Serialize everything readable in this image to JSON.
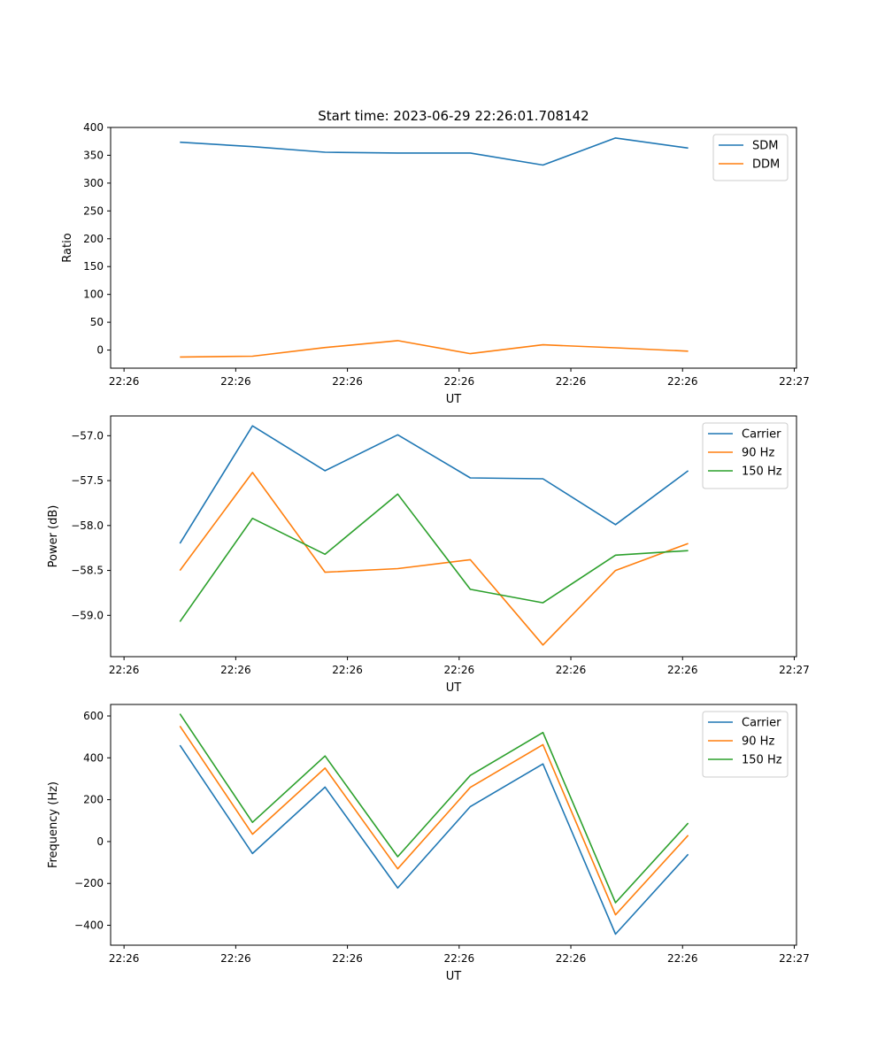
{
  "figure": {
    "title": "Start time: 2023-06-29 22:26:01.708142"
  },
  "chart_data": [
    {
      "type": "line",
      "title": "Start time: 2023-06-29 22:26:01.708142",
      "xlabel": "UT",
      "ylabel": "Ratio",
      "x_tick_labels": [
        "22:26",
        "22:26",
        "22:26",
        "22:26",
        "22:26",
        "22:26",
        "22:27"
      ],
      "x": [
        0.5,
        1.15,
        1.8,
        2.45,
        3.1,
        3.75,
        4.4,
        5.05
      ],
      "xlim": [
        -0.12,
        6.02
      ],
      "ylim": [
        -32.5,
        400
      ],
      "yticks": [
        0,
        50,
        100,
        150,
        200,
        250,
        300,
        350,
        400
      ],
      "grid": false,
      "legend": "top-right",
      "series": [
        {
          "name": "SDM",
          "color": "#1f77b4",
          "values": [
            373.5,
            365.5,
            355.5,
            354,
            354,
            332.5,
            381,
            363
          ]
        },
        {
          "name": "DDM",
          "color": "#ff7f0e",
          "values": [
            -12.5,
            -11,
            4.5,
            17,
            -6.5,
            9.5,
            4,
            -2
          ]
        }
      ]
    },
    {
      "type": "line",
      "xlabel": "UT",
      "ylabel": "Power (dB)",
      "x_tick_labels": [
        "22:26",
        "22:26",
        "22:26",
        "22:26",
        "22:26",
        "22:26",
        "22:27"
      ],
      "x": [
        0.5,
        1.15,
        1.8,
        2.45,
        3.1,
        3.75,
        4.4,
        5.05
      ],
      "xlim": [
        -0.12,
        6.02
      ],
      "ylim": [
        -59.46,
        -56.78
      ],
      "yticks": [
        -59.0,
        -58.5,
        -58.0,
        -57.5,
        -57.0
      ],
      "ytick_labels": [
        "−59.0",
        "−58.5",
        "−58.0",
        "−57.5",
        "−57.0"
      ],
      "grid": false,
      "legend": "top-right",
      "series": [
        {
          "name": "Carrier",
          "color": "#1f77b4",
          "values": [
            -58.2,
            -56.89,
            -57.39,
            -56.99,
            -57.47,
            -57.48,
            -57.99,
            -57.39
          ]
        },
        {
          "name": "90 Hz",
          "color": "#ff7f0e",
          "values": [
            -58.5,
            -57.41,
            -58.52,
            -58.48,
            -58.38,
            -59.33,
            -58.5,
            -58.2
          ]
        },
        {
          "name": "150 Hz",
          "color": "#2ca02c",
          "values": [
            -59.07,
            -57.92,
            -58.32,
            -57.65,
            -58.71,
            -58.86,
            -58.33,
            -58.28
          ]
        }
      ]
    },
    {
      "type": "line",
      "xlabel": "UT",
      "ylabel": "Frequency (Hz)",
      "x_tick_labels": [
        "22:26",
        "22:26",
        "22:26",
        "22:26",
        "22:26",
        "22:26",
        "22:27"
      ],
      "x": [
        0.5,
        1.15,
        1.8,
        2.45,
        3.1,
        3.75,
        4.4,
        5.05
      ],
      "xlim": [
        -0.12,
        6.02
      ],
      "ylim": [
        -495,
        655
      ],
      "yticks": [
        -400,
        -200,
        0,
        200,
        400,
        600
      ],
      "ytick_labels": [
        "−400",
        "−200",
        "0",
        "200",
        "400",
        "600"
      ],
      "grid": false,
      "legend": "top-right",
      "series": [
        {
          "name": "Carrier",
          "color": "#1f77b4",
          "values": [
            460,
            -57,
            260,
            -222,
            167,
            371,
            -442,
            -61
          ]
        },
        {
          "name": "90 Hz",
          "color": "#ff7f0e",
          "values": [
            552,
            35,
            351,
            -130,
            259,
            463,
            -350,
            30
          ]
        },
        {
          "name": "150 Hz",
          "color": "#2ca02c",
          "values": [
            610,
            92,
            409,
            -72,
            316,
            521,
            -292,
            88
          ]
        }
      ]
    }
  ]
}
